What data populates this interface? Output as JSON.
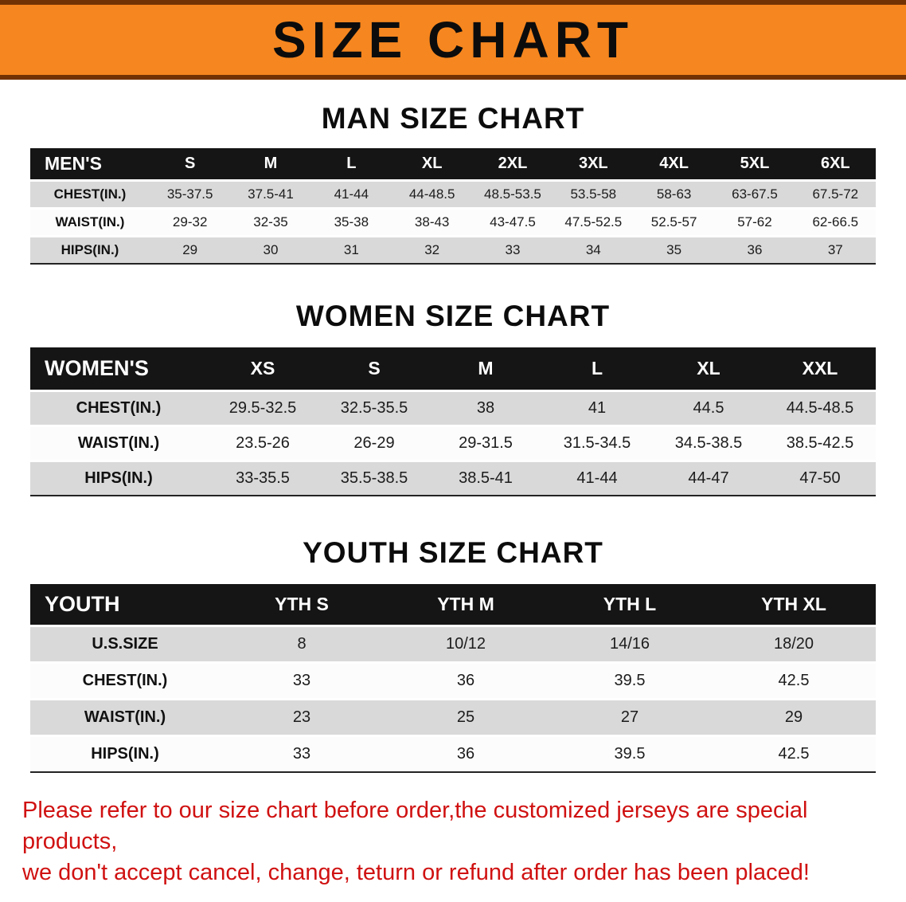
{
  "banner": {
    "title": "SIZE CHART",
    "bg_color": "#f6861f",
    "border_color": "#733203",
    "text_color": "#0c0c0c"
  },
  "sections": [
    {
      "heading": "MAN SIZE CHART",
      "columns": [
        "MEN'S",
        "S",
        "M",
        "L",
        "XL",
        "2XL",
        "3XL",
        "4XL",
        "5XL",
        "6XL"
      ],
      "rows": [
        {
          "label": "CHEST(IN.)",
          "values": [
            "35-37.5",
            "37.5-41",
            "41-44",
            "44-48.5",
            "48.5-53.5",
            "53.5-58",
            "58-63",
            "63-67.5",
            "67.5-72"
          ]
        },
        {
          "label": "WAIST(IN.)",
          "values": [
            "29-32",
            "32-35",
            "35-38",
            "38-43",
            "43-47.5",
            "47.5-52.5",
            "52.5-57",
            "57-62",
            "62-66.5"
          ]
        },
        {
          "label": "HIPS(IN.)",
          "values": [
            "29",
            "30",
            "31",
            "32",
            "33",
            "34",
            "35",
            "36",
            "37"
          ]
        }
      ]
    },
    {
      "heading": "WOMEN SIZE CHART",
      "columns": [
        "WOMEN'S",
        "XS",
        "S",
        "M",
        "L",
        "XL",
        "XXL"
      ],
      "rows": [
        {
          "label": "CHEST(IN.)",
          "values": [
            "29.5-32.5",
            "32.5-35.5",
            "38",
            "41",
            "44.5",
            "44.5-48.5"
          ]
        },
        {
          "label": "WAIST(IN.)",
          "values": [
            "23.5-26",
            "26-29",
            "29-31.5",
            "31.5-34.5",
            "34.5-38.5",
            "38.5-42.5"
          ]
        },
        {
          "label": "HIPS(IN.)",
          "values": [
            "33-35.5",
            "35.5-38.5",
            "38.5-41",
            "41-44",
            "44-47",
            "47-50"
          ]
        }
      ]
    },
    {
      "heading": "YOUTH SIZE CHART",
      "columns": [
        "YOUTH",
        "YTH S",
        "YTH M",
        "YTH L",
        "YTH XL"
      ],
      "rows": [
        {
          "label": "U.S.SIZE",
          "values": [
            "8",
            "10/12",
            "14/16",
            "18/20"
          ]
        },
        {
          "label": "CHEST(IN.)",
          "values": [
            "33",
            "36",
            "39.5",
            "42.5"
          ]
        },
        {
          "label": "WAIST(IN.)",
          "values": [
            "23",
            "25",
            "27",
            "29"
          ]
        },
        {
          "label": "HIPS(IN.)",
          "values": [
            "33",
            "36",
            "39.5",
            "42.5"
          ]
        }
      ]
    }
  ],
  "footer": {
    "line1": "Please refer to our size chart before order,the customized jerseys are special products,",
    "line2": "we don't accept cancel, change, teturn or refund after order has been placed!",
    "color": "#d01111"
  }
}
